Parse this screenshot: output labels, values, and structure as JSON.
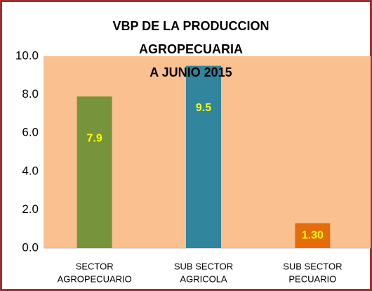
{
  "chart_data": {
    "type": "bar",
    "title": [
      "VBP DE LA PRODUCCION",
      "AGROPECUARIA",
      "A JUNIO 2015"
    ],
    "categories": [
      [
        "SECTOR",
        "AGROPECUARIO"
      ],
      [
        "SUB SECTOR",
        "AGRICOLA"
      ],
      [
        "SUB SECTOR",
        "PECUARIO"
      ]
    ],
    "values": [
      7.9,
      9.5,
      1.3
    ],
    "value_labels": [
      "7.9",
      "9.5",
      "1.30"
    ],
    "colors": [
      "#77933c",
      "#31859c",
      "#e46c0a"
    ],
    "label_color": "#ffff00",
    "plot_background": "#fac090",
    "ylim": [
      0,
      10
    ],
    "yticks": [
      {
        "value": 0,
        "label": "0.0"
      },
      {
        "value": 2,
        "label": "2.0"
      },
      {
        "value": 4,
        "label": "4.0"
      },
      {
        "value": 6,
        "label": "6.0"
      },
      {
        "value": 8,
        "label": "8.0"
      },
      {
        "value": 10,
        "label": "10.0"
      }
    ],
    "grid": false
  }
}
